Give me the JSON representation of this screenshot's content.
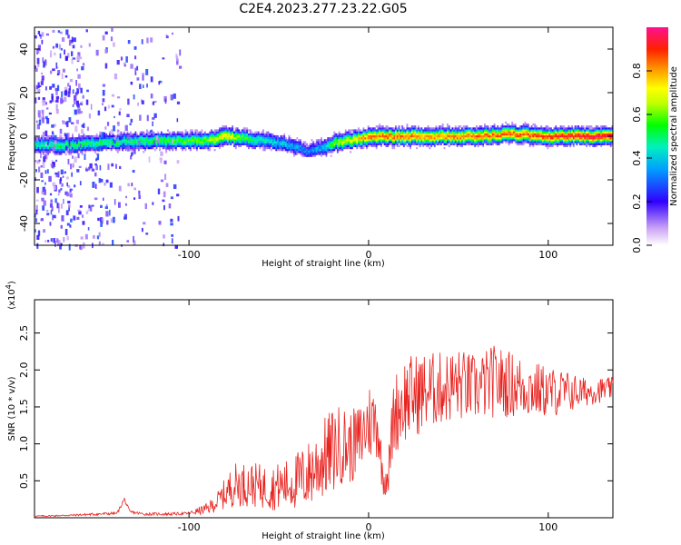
{
  "title": "C2E4.2023.277.23.22.G05",
  "colors": {
    "snr_line": "#e8231f",
    "ridge_hot": "#e8231f",
    "background": "#ffffff"
  },
  "chart_data": [
    {
      "type": "heatmap",
      "xlabel": "Height of straight line (km)",
      "ylabel": "Frequency (Hz)",
      "xlim": [
        -186,
        136
      ],
      "ylim": [
        -50,
        50
      ],
      "x_ticks": [
        -100,
        0,
        100
      ],
      "x_tick_labels": [
        "-100",
        "0",
        "100"
      ],
      "y_ticks": [
        -40,
        -20,
        0,
        20,
        40
      ],
      "y_tick_labels": [
        "-40",
        "-20",
        "0",
        "20",
        "40"
      ],
      "colorbar": {
        "label": "Normalized spectral amplitude",
        "range": [
          0,
          1
        ],
        "ticks": [
          0.0,
          0.2,
          0.4,
          0.6,
          0.8
        ],
        "tick_labels": [
          "0.0",
          "0.2",
          "0.4",
          "0.6",
          "0.8"
        ],
        "colormap": "rainbow (white-purple-blue-cyan-green-yellow-orange-red-magenta)"
      },
      "ridge": {
        "description": "Doppler frequency ridge",
        "x": [
          -186,
          -170,
          -150,
          -130,
          -110,
          -90,
          -80,
          -70,
          -60,
          -50,
          -40,
          -35,
          -30,
          -25,
          -20,
          -10,
          0,
          20,
          40,
          60,
          80,
          100,
          120,
          136
        ],
        "freq": [
          -4,
          -4,
          -3,
          -2,
          -2,
          -2,
          0,
          -1,
          -2,
          -3,
          -5,
          -7,
          -6,
          -5,
          -3,
          -2,
          0,
          0,
          0,
          0,
          1,
          0,
          0,
          0
        ],
        "peak_amplitude": [
          0.45,
          0.5,
          0.5,
          0.5,
          0.55,
          0.6,
          0.75,
          0.55,
          0.45,
          0.4,
          0.35,
          0.3,
          0.35,
          0.4,
          0.6,
          0.7,
          0.85,
          0.85,
          0.8,
          0.85,
          0.85,
          0.9,
          0.95,
          0.95
        ]
      },
      "noise_region_x": [
        -186,
        -105
      ]
    },
    {
      "type": "line",
      "xlabel": "Height of straight line (km)",
      "ylabel": "SNR (10 * v/v)",
      "y_multiplier": "(x10",
      "y_multiplier_exp": "4",
      "y_multiplier_close": ")",
      "xlim": [
        -186,
        136
      ],
      "ylim": [
        0,
        2.95
      ],
      "x_ticks": [
        -100,
        0,
        100
      ],
      "x_tick_labels": [
        "-100",
        "0",
        "100"
      ],
      "y_ticks": [
        0.5,
        1.0,
        1.5,
        2.0,
        2.5
      ],
      "y_tick_labels": [
        "0.5",
        "1.0",
        "1.5",
        "2.0",
        "2.5"
      ],
      "series": [
        {
          "x": [
            -186,
            -170,
            -150,
            -140,
            -136,
            -133,
            -125,
            -110,
            -100,
            -90,
            -85,
            -75,
            -65,
            -55,
            -45,
            -35,
            -25,
            -20,
            -15,
            -10,
            -5,
            0,
            5,
            8,
            11,
            14,
            20,
            30,
            40,
            50,
            60,
            70,
            80,
            90,
            100,
            110,
            120,
            136
          ],
          "values": [
            0.02,
            0.03,
            0.05,
            0.06,
            0.25,
            0.08,
            0.05,
            0.05,
            0.06,
            0.12,
            0.2,
            0.45,
            0.45,
            0.4,
            0.45,
            0.55,
            0.8,
            0.9,
            1.0,
            0.95,
            1.05,
            1.3,
            1.3,
            0.5,
            0.6,
            1.4,
            1.6,
            1.7,
            1.75,
            1.8,
            1.75,
            1.85,
            1.8,
            1.75,
            1.7,
            1.7,
            1.7,
            1.75
          ],
          "amplitude": [
            0.01,
            0.01,
            0.02,
            0.02,
            0.03,
            0.02,
            0.02,
            0.02,
            0.02,
            0.08,
            0.12,
            0.3,
            0.3,
            0.3,
            0.35,
            0.45,
            0.55,
            0.6,
            0.55,
            0.5,
            0.5,
            0.55,
            0.5,
            0.2,
            0.3,
            0.55,
            0.6,
            0.55,
            0.5,
            0.5,
            0.45,
            0.5,
            0.45,
            0.4,
            0.35,
            0.3,
            0.2,
            0.15
          ]
        }
      ]
    }
  ]
}
